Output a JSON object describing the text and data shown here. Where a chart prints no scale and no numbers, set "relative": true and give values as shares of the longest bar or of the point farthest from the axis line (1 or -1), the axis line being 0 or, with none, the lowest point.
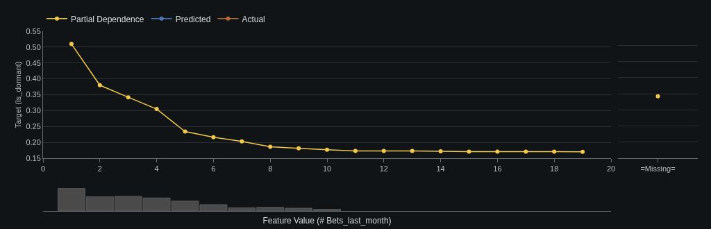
{
  "chart_data": [
    {
      "type": "line",
      "ylabel": "Target (Is_dormant)",
      "x": [
        1,
        2,
        3,
        4,
        5,
        6,
        7,
        8,
        9,
        10,
        11,
        12,
        13,
        14,
        15,
        16,
        17,
        18,
        19
      ],
      "series": [
        {
          "name": "Partial Dependence",
          "color": "#f2c94c",
          "values": [
            0.51,
            0.38,
            0.342,
            0.305,
            0.234,
            0.216,
            0.203,
            0.186,
            0.181,
            0.177,
            0.173,
            0.173,
            0.173,
            0.172,
            0.171,
            0.171,
            0.171,
            0.171,
            0.17
          ]
        },
        {
          "name": "Predicted",
          "color": "#4a78b5",
          "values": [
            null,
            null,
            null,
            null,
            null,
            null,
            null,
            null,
            null,
            null,
            null,
            null,
            null,
            null,
            null,
            null,
            null,
            null,
            null
          ]
        },
        {
          "name": "Actual",
          "color": "#b8673e",
          "values": [
            null,
            null,
            null,
            null,
            null,
            null,
            null,
            null,
            null,
            null,
            null,
            null,
            null,
            null,
            null,
            null,
            null,
            null,
            null
          ]
        }
      ],
      "xlim": [
        0,
        20
      ],
      "xticks": [
        0,
        2,
        4,
        6,
        8,
        10,
        12,
        14,
        16,
        18,
        20
      ],
      "ylim": [
        0.15,
        0.55
      ],
      "yticks": [
        {
          "value": 0.15,
          "label": "0.15"
        },
        {
          "value": 0.2,
          "label": "0.20"
        },
        {
          "value": 0.25,
          "label": "0.25"
        },
        {
          "value": 0.3,
          "label": "0.30"
        },
        {
          "value": 0.35,
          "label": "0.35"
        },
        {
          "value": 0.4,
          "label": "0.40"
        },
        {
          "value": 0.45,
          "label": "0.45"
        },
        {
          "value": 0.5,
          "label": "0.50"
        },
        {
          "value": 0.55,
          "label": "0.55"
        }
      ],
      "grid": "y",
      "legend": "top left",
      "marker": "circle",
      "line_style": "solid"
    },
    {
      "type": "scatter",
      "categories": [
        "=Missing="
      ],
      "series": [
        {
          "color": "#f2c94c",
          "values": [
            0.342
          ]
        }
      ],
      "ylim": [
        0.15,
        0.55
      ],
      "yticks": [
        0.15,
        0.2,
        0.25,
        0.3,
        0.35,
        0.4,
        0.45,
        0.5,
        0.55
      ],
      "grid": "y",
      "tick_labels": "x",
      "marker": "circle"
    },
    {
      "type": "bar",
      "relative": true,
      "xlabel": "Feature Value (# Bets_last_month)",
      "x": [
        1,
        2,
        3,
        4,
        5,
        6,
        7,
        8,
        9,
        10
      ],
      "xlim": [
        0,
        20
      ],
      "values": [
        1,
        0.63,
        0.65,
        0.58,
        0.44,
        0.28,
        0.14,
        0.16,
        0.12,
        0.07
      ],
      "color": "#4a4a4a",
      "tick_labels": false
    }
  ]
}
